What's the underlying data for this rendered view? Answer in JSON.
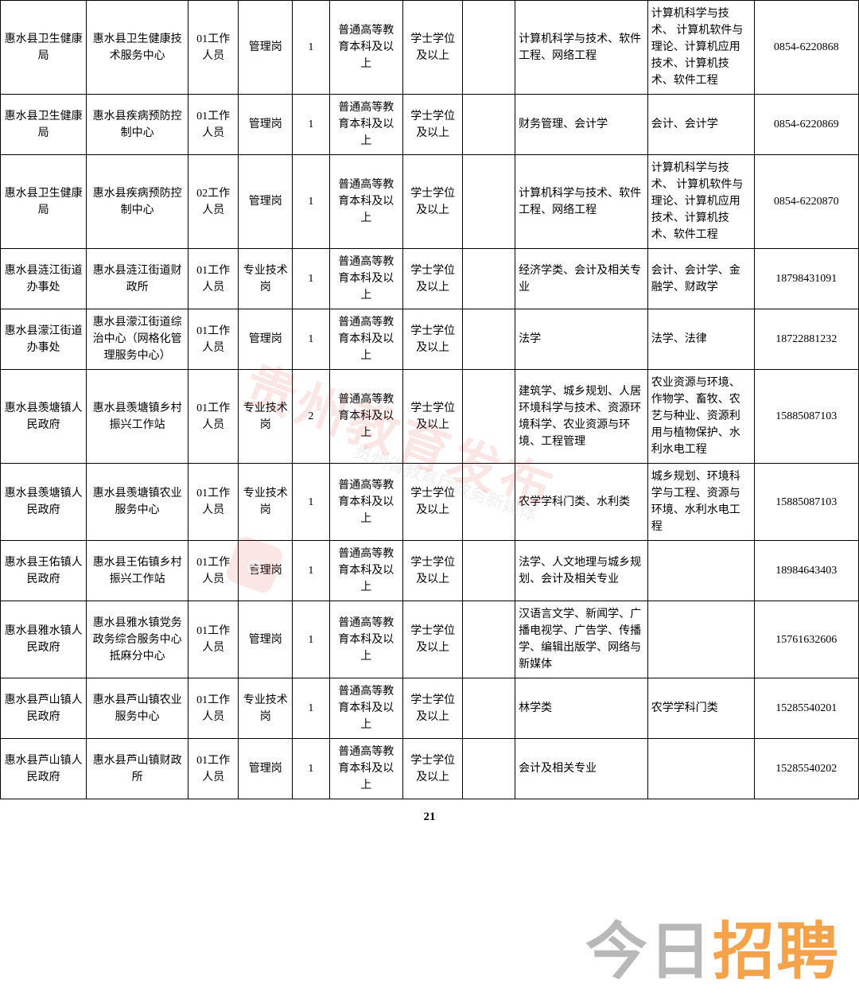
{
  "table": {
    "columns": [
      {
        "width": "8.9%"
      },
      {
        "width": "10.5%"
      },
      {
        "width": "5.2%"
      },
      {
        "width": "5.6%"
      },
      {
        "width": "3.8%"
      },
      {
        "width": "7.6%"
      },
      {
        "width": "6.2%"
      },
      {
        "width": "5.4%"
      },
      {
        "width": "13.7%"
      },
      {
        "width": "11.0%"
      },
      {
        "width": "10.8%"
      }
    ],
    "rows": [
      {
        "c0": "惠水县卫生健康局",
        "c1": "惠水县卫生健康技术服务中心",
        "c2": "01工作人员",
        "c3": "管理岗",
        "c4": "1",
        "c5": "普通高等教育本科及以上",
        "c6": "学士学位及以上",
        "c7": "",
        "c8": "计算机科学与技术、软件工程、网络工程",
        "c9": "计算机科学与技术、\n计算机软件与理论、计算机应用技术、计算机技术、软件工程",
        "c10": "0854-6220868"
      },
      {
        "c0": "惠水县卫生健康局",
        "c1": "惠水县疾病预防控制中心",
        "c2": "01工作人员",
        "c3": "管理岗",
        "c4": "1",
        "c5": "普通高等教育本科及以上",
        "c6": "学士学位及以上",
        "c7": "",
        "c8": "财务管理、会计学",
        "c9": "会计、会计学",
        "c10": "0854-6220869"
      },
      {
        "c0": "惠水县卫生健康局",
        "c1": "惠水县疾病预防控制中心",
        "c2": "02工作人员",
        "c3": "管理岗",
        "c4": "1",
        "c5": "普通高等教育本科及以上",
        "c6": "学士学位及以上",
        "c7": "",
        "c8": "计算机科学与技术、软件工程、网络工程",
        "c9": "计算机科学与技术、\n计算机软件与理论、计算机应用技术、计算机技术、软件工程",
        "c10": "0854-6220870"
      },
      {
        "c0": "惠水县涟江街道办事处",
        "c1": "惠水县涟江街道财政所",
        "c2": "01工作人员",
        "c3": "专业技术岗",
        "c4": "1",
        "c5": "普通高等教育本科及以上",
        "c6": "学士学位及以上",
        "c7": "",
        "c8": "经济学类、会计及相关专业",
        "c9": "会计、会计学、金融学、财政学",
        "c10": "18798431091"
      },
      {
        "c0": "惠水县濛江街道办事处",
        "c1": "惠水县濛江街道综治中心（网格化管理服务中心）",
        "c2": "01工作人员",
        "c3": "管理岗",
        "c4": "1",
        "c5": "普通高等教育本科及以上",
        "c6": "学士学位及以上",
        "c7": "",
        "c8": "法学",
        "c9": "法学、法律",
        "c10": "18722881232"
      },
      {
        "c0": "惠水县羡塘镇人民政府",
        "c1": "惠水县羡塘镇乡村振兴工作站",
        "c2": "01工作人员",
        "c3": "专业技术岗",
        "c4": "2",
        "c5": "普通高等教育本科及以上",
        "c6": "学士学位及以上",
        "c7": "",
        "c8": "建筑学、城乡规划、人居环境科学与技术、资源环境科学、农业资源与环境、工程管理",
        "c9": "农业资源与环境、作物学、畜牧、农艺与种业、资源利用与植物保护、水利水电工程",
        "c10": "15885087103"
      },
      {
        "c0": "惠水县羡塘镇人民政府",
        "c1": "惠水县羡塘镇农业服务中心",
        "c2": "01工作人员",
        "c3": "专业技术岗",
        "c4": "1",
        "c5": "普通高等教育本科及以上",
        "c6": "学士学位及以上",
        "c7": "",
        "c8": "农学学科门类、水利类",
        "c9": "城乡规划、环境科学与工程、资源与环境、水利水电工程",
        "c10": "15885087103"
      },
      {
        "c0": "惠水县王佑镇人民政府",
        "c1": "惠水县王佑镇乡村振兴工作站",
        "c2": "01工作人员",
        "c3": "管理岗",
        "c4": "1",
        "c5": "普通高等教育本科及以上",
        "c6": "学士学位及以上",
        "c7": "",
        "c8": "法学、人文地理与城乡规划、会计及相关专业",
        "c9": "",
        "c10": "18984643403"
      },
      {
        "c0": "惠水县雅水镇人民政府",
        "c1": "惠水县雅水镇党务政务综合服务中心抵麻分中心",
        "c2": "01工作人员",
        "c3": "管理岗",
        "c4": "1",
        "c5": "普通高等教育本科及以上",
        "c6": "学士学位及以上",
        "c7": "",
        "c8": "汉语言文学、新闻学、广播电视学、广告学、传播学、编辑出版学、网络与新媒体",
        "c9": "",
        "c10": "15761632606"
      },
      {
        "c0": "惠水县芦山镇人民政府",
        "c1": "惠水县芦山镇农业服务中心",
        "c2": "01工作人员",
        "c3": "专业技术岗",
        "c4": "1",
        "c5": "普通高等教育本科及以上",
        "c6": "学士学位及以上",
        "c7": "",
        "c8": "林学类",
        "c9": "农学学科门类",
        "c10": "15285540201"
      },
      {
        "c0": "惠水县芦山镇人民政府",
        "c1": "惠水县芦山镇财政所",
        "c2": "01工作人员",
        "c3": "管理岗",
        "c4": "1",
        "c5": "普通高等教育本科及以上",
        "c6": "学士学位及以上",
        "c7": "",
        "c8": "会计及相关专业",
        "c9": "",
        "c10": "15285540202"
      }
    ]
  },
  "page_number": "21",
  "watermark_center": "贵州教育发布",
  "watermark_sub": "贵州省教育厅政务新媒体",
  "watermark_logo_letter": "e",
  "footer_gray": "今日",
  "footer_orange": "招聘",
  "colors": {
    "border": "#000000",
    "background": "#ffffff",
    "text": "#000000",
    "watermark_red": "rgba(220,50,50,0.12)",
    "footer_gray": "#b8b8b8",
    "footer_orange": "#f5a34b"
  }
}
